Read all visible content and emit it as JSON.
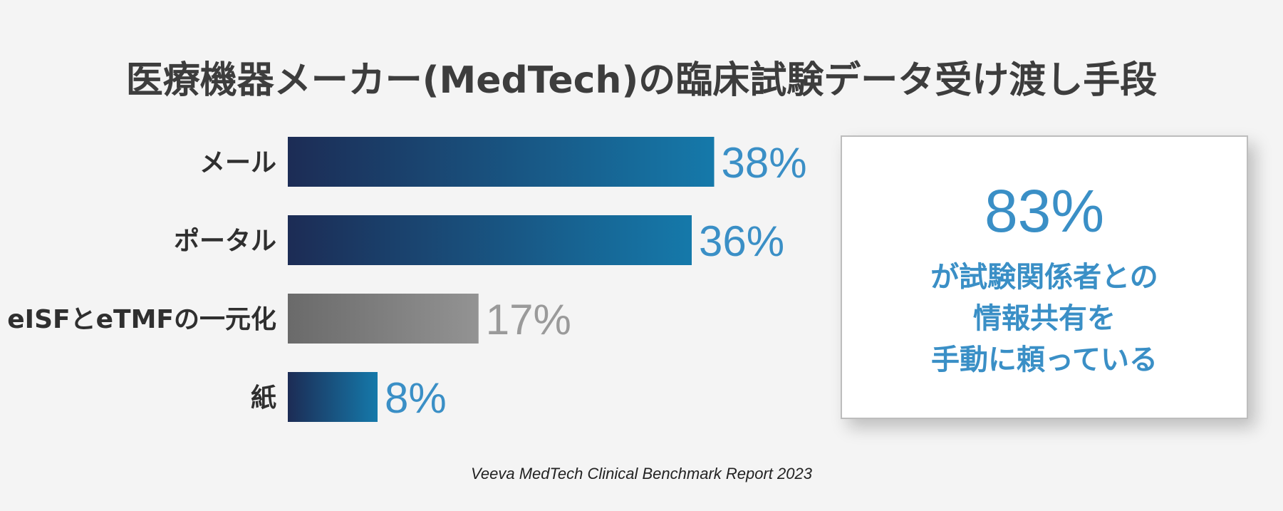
{
  "title": "医療機器メーカー(MedTech)の臨床試験データ受け渡し手段",
  "chart_data": {
    "type": "bar",
    "orientation": "horizontal",
    "categories": [
      "メール",
      "ポータル",
      "eISFとeTMFの一元化",
      "紙"
    ],
    "values": [
      38,
      36,
      17,
      8
    ],
    "value_labels": [
      "38%",
      "36%",
      "17%",
      "8%"
    ],
    "unit": "%",
    "bar_styles": [
      "blue",
      "blue",
      "gray",
      "blue"
    ],
    "value_label_colors": [
      "#3a8fc6",
      "#3a8fc6",
      "#9a9a9a",
      "#3a8fc6"
    ]
  },
  "callout": {
    "percent": "83%",
    "lines": [
      "が試験関係者との",
      "情報共有を",
      "手動に頼っている"
    ]
  },
  "source": "Veeva MedTech Clinical Benchmark Report 2023",
  "colors": {
    "background": "#f4f4f4",
    "blue_gradient_start": "#1c2c55",
    "blue_gradient_end": "#1579aa",
    "gray_gradient_start": "#6a6a6a",
    "gray_gradient_end": "#939393",
    "accent": "#3a8fc6",
    "title": "#3d3d3d"
  }
}
